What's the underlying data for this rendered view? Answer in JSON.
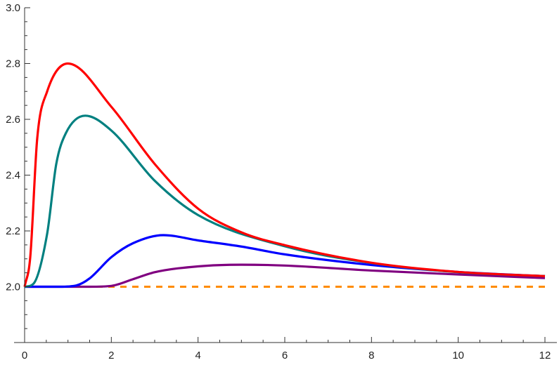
{
  "chart_data": {
    "type": "line",
    "title": "",
    "xlabel": "",
    "ylabel": "",
    "xlim": [
      0,
      12
    ],
    "ylim": [
      1.8,
      3.0
    ],
    "grid": false,
    "x_ticks": [
      "0",
      "2",
      "4",
      "6",
      "8",
      "10",
      "12"
    ],
    "y_ticks": [
      "2.0",
      "2.2",
      "2.4",
      "2.6",
      "2.8",
      "3.0"
    ],
    "series": [
      {
        "color": "#ff8c00",
        "style": "dashed",
        "x": [
          0,
          12
        ],
        "y": [
          2.0,
          2.0
        ]
      },
      {
        "color": "#800080",
        "style": "solid",
        "x": [
          0,
          1,
          1.5,
          2,
          2.5,
          3,
          4,
          5,
          6,
          8,
          10,
          12
        ],
        "y": [
          2.0,
          2.0,
          2.0,
          2.003,
          2.027,
          2.052,
          2.073,
          2.079,
          2.076,
          2.058,
          2.044,
          2.031
        ]
      },
      {
        "color": "#0000ff",
        "style": "solid",
        "x": [
          0,
          0.8,
          1.2,
          1.5,
          2,
          2.5,
          3.2,
          4,
          5,
          6,
          8,
          10,
          12
        ],
        "y": [
          2.0,
          2.0,
          2.005,
          2.03,
          2.106,
          2.156,
          2.185,
          2.166,
          2.144,
          2.116,
          2.078,
          2.053,
          2.038
        ]
      },
      {
        "color": "#008080",
        "style": "solid",
        "x": [
          0,
          0.2,
          0.52,
          0.73,
          0.95,
          1.4,
          2,
          3,
          4,
          6,
          8,
          10,
          12
        ],
        "y": [
          2.0,
          2.01,
          2.19,
          2.44,
          2.55,
          2.613,
          2.56,
          2.38,
          2.257,
          2.145,
          2.085,
          2.052,
          2.038
        ]
      },
      {
        "color": "#ff0000",
        "style": "solid",
        "x": [
          0,
          0.13,
          0.29,
          0.52,
          1,
          2,
          3,
          4,
          5,
          6,
          8,
          10,
          12
        ],
        "y": [
          2.0,
          2.106,
          2.53,
          2.7,
          2.8,
          2.645,
          2.44,
          2.28,
          2.195,
          2.149,
          2.086,
          2.053,
          2.038
        ]
      }
    ]
  }
}
